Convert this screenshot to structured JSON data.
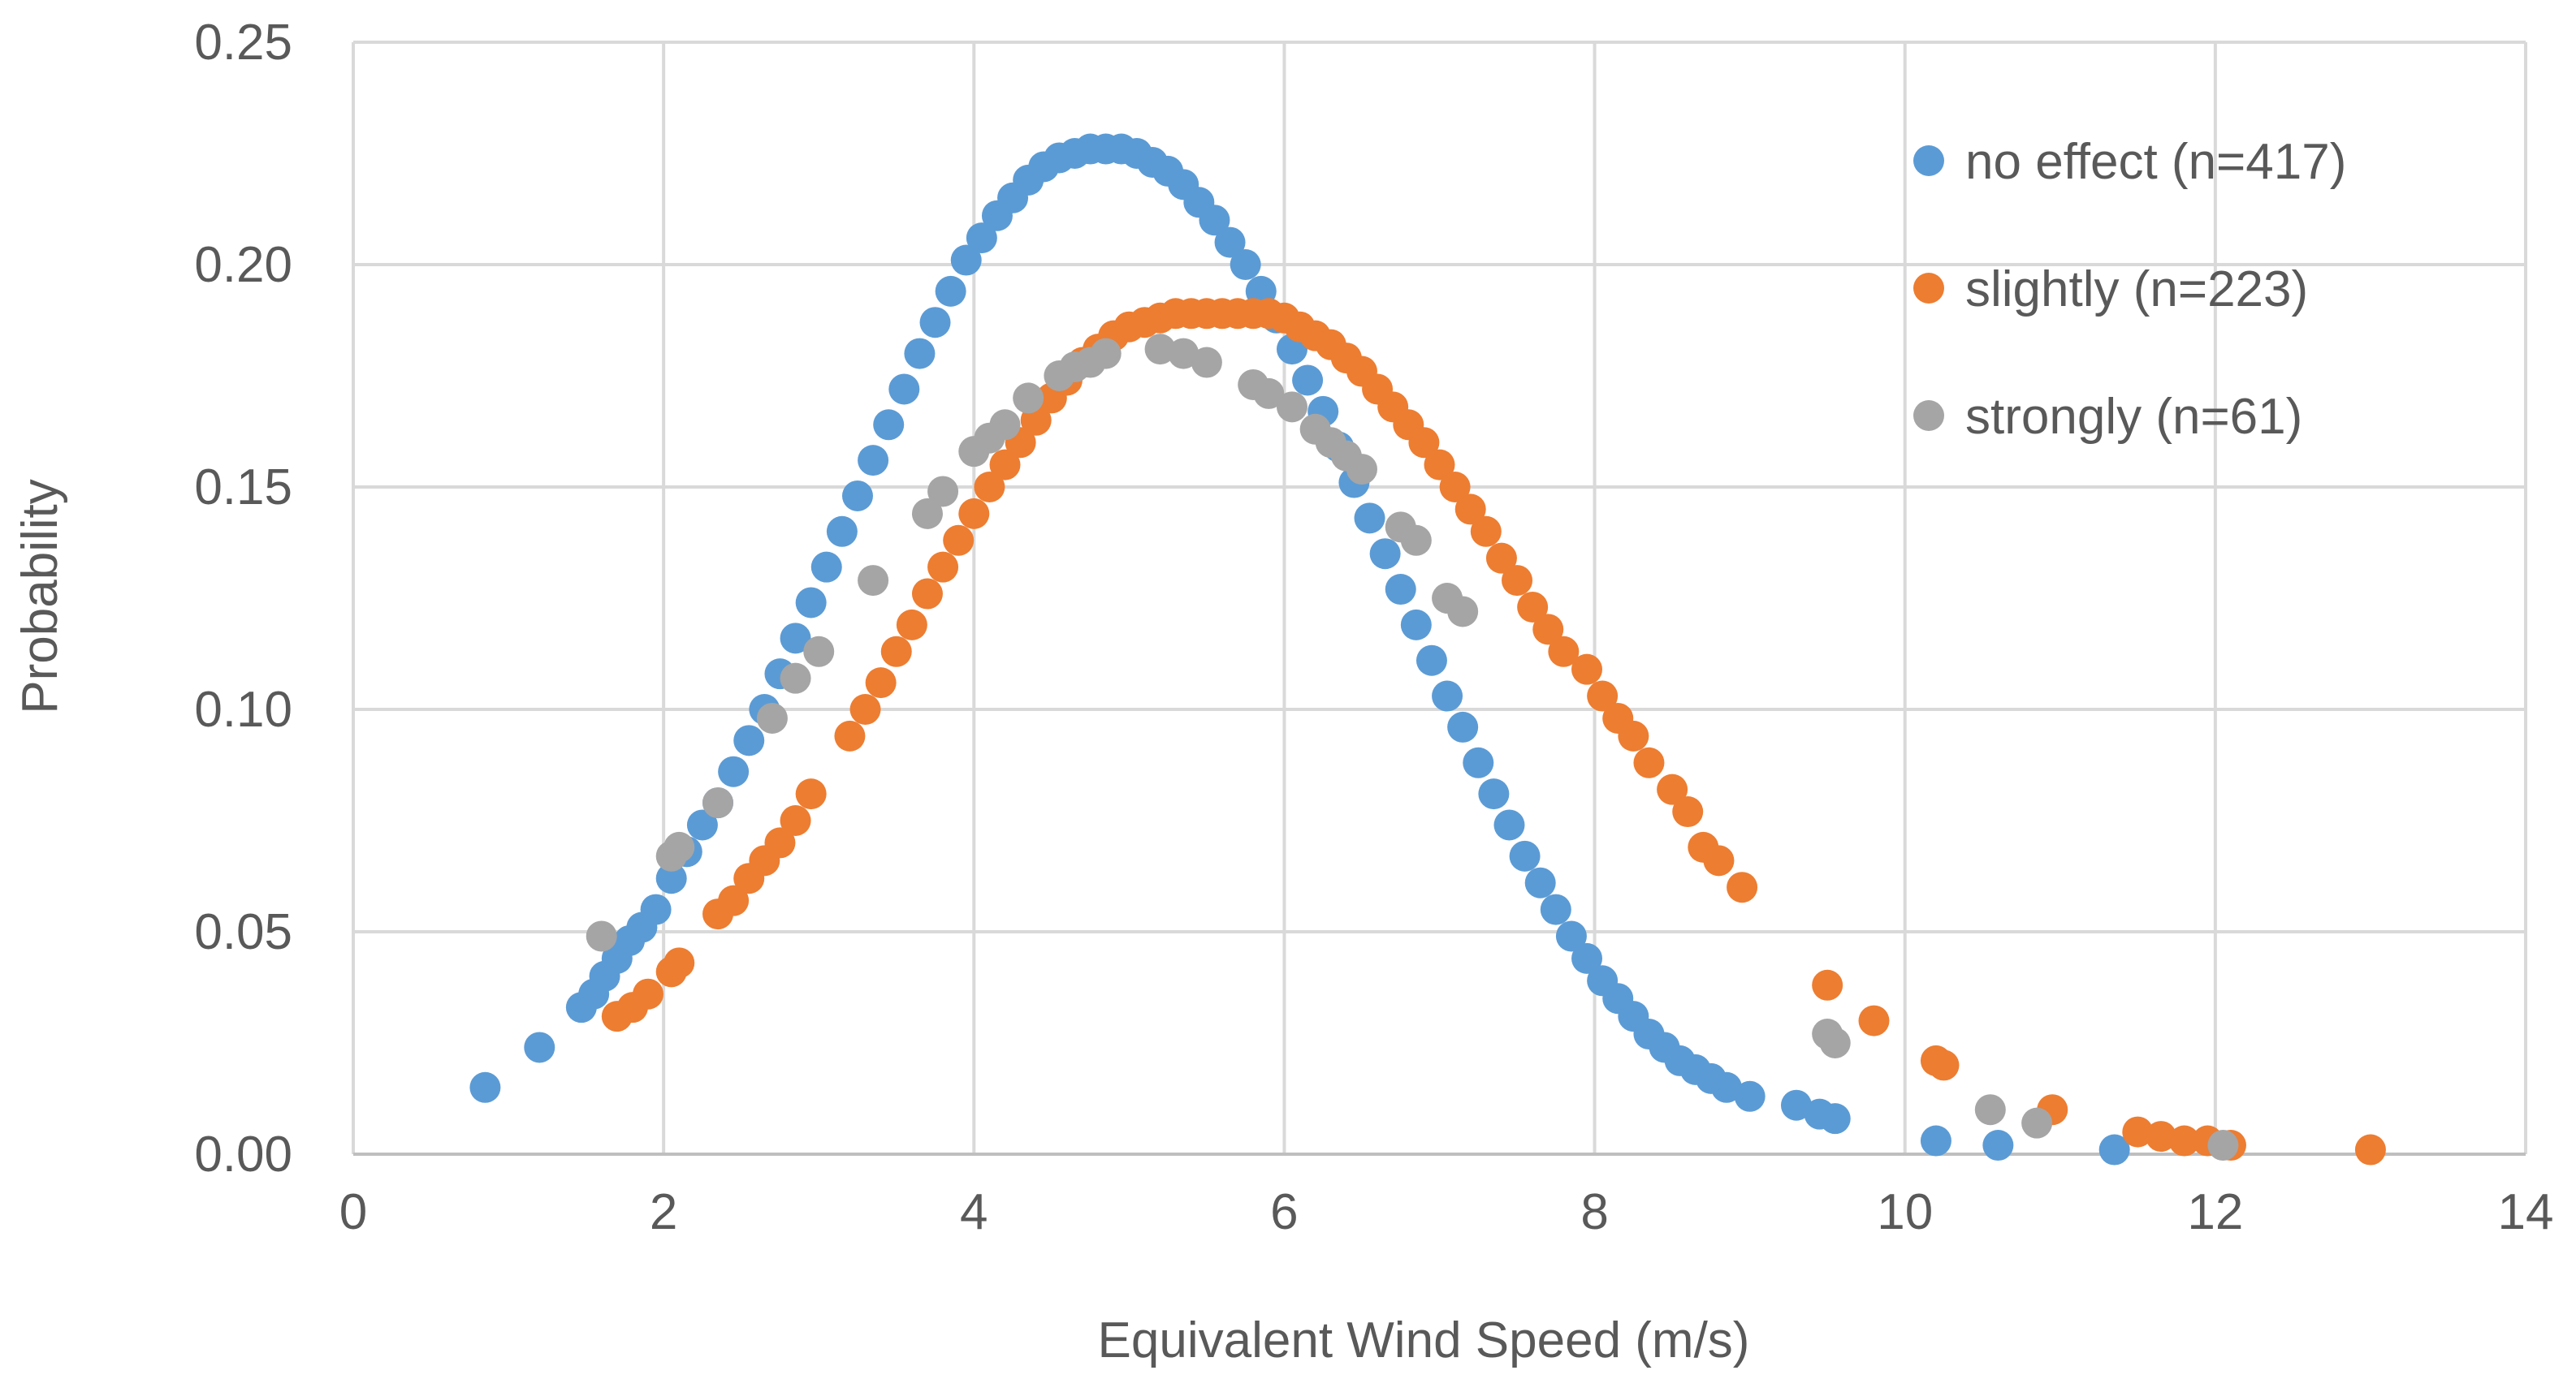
{
  "chart_data": {
    "type": "scatter",
    "title": "",
    "xlabel": "Equivalent Wind Speed (m/s)",
    "ylabel": "Probability",
    "xlim": [
      0,
      14
    ],
    "ylim": [
      0,
      0.25
    ],
    "x_ticks": [
      0,
      2,
      4,
      6,
      8,
      10,
      12,
      14
    ],
    "x_tick_labels": [
      "0",
      "2",
      "4",
      "6",
      "8",
      "10",
      "12",
      "14"
    ],
    "y_ticks": [
      0,
      0.05,
      0.1,
      0.15,
      0.2,
      0.25
    ],
    "y_tick_labels": [
      "0.00",
      "0.05",
      "0.10",
      "0.15",
      "0.20",
      "0.25"
    ],
    "grid": true,
    "legend_position": "top-right",
    "series": [
      {
        "name": "no effect (n=417)",
        "color": "#5b9bd5",
        "points": [
          [
            0.85,
            0.015
          ],
          [
            1.2,
            0.024
          ],
          [
            1.47,
            0.033
          ],
          [
            1.55,
            0.036
          ],
          [
            1.62,
            0.04
          ],
          [
            1.7,
            0.044
          ],
          [
            1.78,
            0.048
          ],
          [
            1.86,
            0.051
          ],
          [
            1.95,
            0.055
          ],
          [
            2.05,
            0.062
          ],
          [
            2.15,
            0.068
          ],
          [
            2.25,
            0.074
          ],
          [
            2.35,
            0.079
          ],
          [
            2.45,
            0.086
          ],
          [
            2.55,
            0.093
          ],
          [
            2.65,
            0.1
          ],
          [
            2.75,
            0.108
          ],
          [
            2.85,
            0.116
          ],
          [
            2.95,
            0.124
          ],
          [
            3.05,
            0.132
          ],
          [
            3.15,
            0.14
          ],
          [
            3.25,
            0.148
          ],
          [
            3.35,
            0.156
          ],
          [
            3.45,
            0.164
          ],
          [
            3.55,
            0.172
          ],
          [
            3.65,
            0.18
          ],
          [
            3.75,
            0.187
          ],
          [
            3.85,
            0.194
          ],
          [
            3.95,
            0.201
          ],
          [
            4.05,
            0.206
          ],
          [
            4.15,
            0.211
          ],
          [
            4.25,
            0.215
          ],
          [
            4.35,
            0.219
          ],
          [
            4.45,
            0.222
          ],
          [
            4.55,
            0.224
          ],
          [
            4.65,
            0.225
          ],
          [
            4.75,
            0.226
          ],
          [
            4.85,
            0.226
          ],
          [
            4.95,
            0.226
          ],
          [
            5.05,
            0.225
          ],
          [
            5.15,
            0.223
          ],
          [
            5.25,
            0.221
          ],
          [
            5.35,
            0.218
          ],
          [
            5.45,
            0.214
          ],
          [
            5.55,
            0.21
          ],
          [
            5.65,
            0.205
          ],
          [
            5.75,
            0.2
          ],
          [
            5.85,
            0.194
          ],
          [
            5.95,
            0.188
          ],
          [
            6.05,
            0.181
          ],
          [
            6.15,
            0.174
          ],
          [
            6.25,
            0.167
          ],
          [
            6.35,
            0.159
          ],
          [
            6.45,
            0.151
          ],
          [
            6.55,
            0.143
          ],
          [
            6.65,
            0.135
          ],
          [
            6.75,
            0.127
          ],
          [
            6.85,
            0.119
          ],
          [
            6.95,
            0.111
          ],
          [
            7.05,
            0.103
          ],
          [
            7.15,
            0.096
          ],
          [
            7.25,
            0.088
          ],
          [
            7.35,
            0.081
          ],
          [
            7.45,
            0.074
          ],
          [
            7.55,
            0.067
          ],
          [
            7.65,
            0.061
          ],
          [
            7.75,
            0.055
          ],
          [
            7.85,
            0.049
          ],
          [
            7.95,
            0.044
          ],
          [
            8.05,
            0.039
          ],
          [
            8.15,
            0.035
          ],
          [
            8.25,
            0.031
          ],
          [
            8.35,
            0.027
          ],
          [
            8.45,
            0.024
          ],
          [
            8.55,
            0.021
          ],
          [
            8.65,
            0.019
          ],
          [
            8.75,
            0.017
          ],
          [
            8.85,
            0.015
          ],
          [
            9.0,
            0.013
          ],
          [
            9.3,
            0.011
          ],
          [
            9.45,
            0.009
          ],
          [
            9.55,
            0.008
          ],
          [
            10.2,
            0.003
          ],
          [
            10.6,
            0.002
          ],
          [
            11.35,
            0.001
          ]
        ]
      },
      {
        "name": "slightly (n=223)",
        "color": "#ed7d31",
        "points": [
          [
            1.7,
            0.031
          ],
          [
            1.8,
            0.033
          ],
          [
            1.9,
            0.036
          ],
          [
            2.05,
            0.041
          ],
          [
            2.1,
            0.043
          ],
          [
            2.35,
            0.054
          ],
          [
            2.45,
            0.057
          ],
          [
            2.55,
            0.062
          ],
          [
            2.65,
            0.066
          ],
          [
            2.75,
            0.07
          ],
          [
            2.85,
            0.075
          ],
          [
            2.95,
            0.081
          ],
          [
            3.2,
            0.094
          ],
          [
            3.3,
            0.1
          ],
          [
            3.4,
            0.106
          ],
          [
            3.5,
            0.113
          ],
          [
            3.6,
            0.119
          ],
          [
            3.7,
            0.126
          ],
          [
            3.8,
            0.132
          ],
          [
            3.9,
            0.138
          ],
          [
            4.0,
            0.144
          ],
          [
            4.1,
            0.15
          ],
          [
            4.2,
            0.155
          ],
          [
            4.3,
            0.16
          ],
          [
            4.4,
            0.165
          ],
          [
            4.5,
            0.17
          ],
          [
            4.6,
            0.174
          ],
          [
            4.7,
            0.178
          ],
          [
            4.8,
            0.181
          ],
          [
            4.9,
            0.184
          ],
          [
            5.0,
            0.186
          ],
          [
            5.1,
            0.187
          ],
          [
            5.2,
            0.188
          ],
          [
            5.3,
            0.189
          ],
          [
            5.4,
            0.189
          ],
          [
            5.5,
            0.189
          ],
          [
            5.6,
            0.189
          ],
          [
            5.7,
            0.189
          ],
          [
            5.8,
            0.189
          ],
          [
            5.9,
            0.189
          ],
          [
            6.0,
            0.188
          ],
          [
            6.1,
            0.186
          ],
          [
            6.2,
            0.184
          ],
          [
            6.3,
            0.182
          ],
          [
            6.4,
            0.179
          ],
          [
            6.5,
            0.176
          ],
          [
            6.6,
            0.172
          ],
          [
            6.7,
            0.168
          ],
          [
            6.8,
            0.164
          ],
          [
            6.9,
            0.16
          ],
          [
            7.0,
            0.155
          ],
          [
            7.1,
            0.15
          ],
          [
            7.2,
            0.145
          ],
          [
            7.3,
            0.14
          ],
          [
            7.4,
            0.134
          ],
          [
            7.5,
            0.129
          ],
          [
            7.6,
            0.123
          ],
          [
            7.7,
            0.118
          ],
          [
            7.8,
            0.113
          ],
          [
            7.95,
            0.109
          ],
          [
            8.05,
            0.103
          ],
          [
            8.15,
            0.098
          ],
          [
            8.25,
            0.094
          ],
          [
            8.35,
            0.088
          ],
          [
            8.5,
            0.082
          ],
          [
            8.6,
            0.077
          ],
          [
            8.7,
            0.069
          ],
          [
            8.8,
            0.066
          ],
          [
            8.95,
            0.06
          ],
          [
            9.5,
            0.038
          ],
          [
            9.8,
            0.03
          ],
          [
            10.2,
            0.021
          ],
          [
            10.25,
            0.02
          ],
          [
            10.95,
            0.01
          ],
          [
            11.5,
            0.005
          ],
          [
            11.65,
            0.004
          ],
          [
            11.8,
            0.003
          ],
          [
            11.95,
            0.003
          ],
          [
            12.1,
            0.002
          ],
          [
            13.0,
            0.001
          ]
        ]
      },
      {
        "name": "strongly (n=61)",
        "color": "#a5a5a5",
        "points": [
          [
            1.6,
            0.049
          ],
          [
            2.05,
            0.067
          ],
          [
            2.1,
            0.069
          ],
          [
            2.35,
            0.079
          ],
          [
            2.7,
            0.098
          ],
          [
            2.85,
            0.107
          ],
          [
            3.0,
            0.113
          ],
          [
            3.35,
            0.129
          ],
          [
            3.7,
            0.144
          ],
          [
            3.8,
            0.149
          ],
          [
            4.0,
            0.158
          ],
          [
            4.1,
            0.161
          ],
          [
            4.2,
            0.164
          ],
          [
            4.35,
            0.17
          ],
          [
            4.55,
            0.175
          ],
          [
            4.65,
            0.177
          ],
          [
            4.75,
            0.178
          ],
          [
            4.85,
            0.18
          ],
          [
            5.2,
            0.181
          ],
          [
            5.35,
            0.18
          ],
          [
            5.5,
            0.178
          ],
          [
            5.8,
            0.173
          ],
          [
            5.9,
            0.171
          ],
          [
            6.05,
            0.168
          ],
          [
            6.2,
            0.163
          ],
          [
            6.3,
            0.16
          ],
          [
            6.4,
            0.157
          ],
          [
            6.5,
            0.154
          ],
          [
            6.75,
            0.141
          ],
          [
            6.85,
            0.138
          ],
          [
            7.05,
            0.125
          ],
          [
            7.15,
            0.122
          ],
          [
            9.5,
            0.027
          ],
          [
            9.55,
            0.025
          ],
          [
            10.55,
            0.01
          ],
          [
            10.85,
            0.007
          ],
          [
            12.05,
            0.002
          ]
        ]
      }
    ]
  }
}
